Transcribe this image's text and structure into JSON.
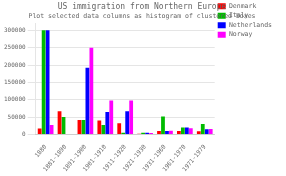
{
  "chart_data": {
    "type": "bar",
    "title": "US immigration from Northern Europe",
    "subtitle": "Plot selected data columns as histogram of clustered boxes",
    "categories": [
      "1880",
      "1881-1890",
      "1891-1900",
      "1901-1910",
      "1911-1920",
      "1921-1930",
      "1931-1960",
      "1961-1970",
      "1971-1979"
    ],
    "series": [
      {
        "name": "Denmark",
        "color": "#ff0000",
        "values": [
          17000,
          67000,
          42000,
          40000,
          32000,
          2000,
          10000,
          10000,
          9000
        ]
      },
      {
        "name": "Italy",
        "color": "#00bb00",
        "values": [
          300000,
          50000,
          42000,
          27000,
          5000,
          5000,
          52000,
          20000,
          30000
        ]
      },
      {
        "name": "Netherlands",
        "color": "#0000ff",
        "values": [
          300000,
          0,
          192000,
          65000,
          67000,
          5000,
          10000,
          20000,
          15000
        ]
      },
      {
        "name": "Norway",
        "color": "#ff00ff",
        "values": [
          27000,
          0,
          250000,
          98000,
          98000,
          4000,
          11000,
          18000,
          16000
        ]
      }
    ],
    "ylim": [
      0,
      320000
    ],
    "yticks": [
      0,
      50000,
      100000,
      150000,
      200000,
      250000,
      300000
    ],
    "grid": true,
    "legend": "upper right"
  }
}
